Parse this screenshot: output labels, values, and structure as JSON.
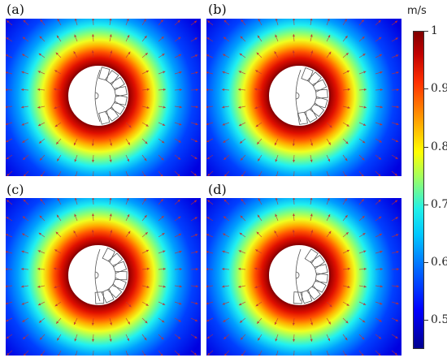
{
  "chart_data": {
    "type": "heatmap",
    "title": "",
    "panels": [
      {
        "label": "(a)",
        "magnet_blocks": 8
      },
      {
        "label": "(b)",
        "magnet_blocks": 8
      },
      {
        "label": "(c)",
        "magnet_blocks": 8
      },
      {
        "label": "(d)",
        "magnet_blocks": 8
      }
    ],
    "colorbar": {
      "unit": "m/s",
      "range": [
        0.45,
        1.0
      ],
      "ticks": [
        {
          "value": 1.0,
          "label": "1"
        },
        {
          "value": 0.9,
          "label": "0.9"
        },
        {
          "value": 0.8,
          "label": "0.8"
        },
        {
          "value": 0.7,
          "label": "0.7"
        },
        {
          "value": 0.6,
          "label": "0.6"
        },
        {
          "value": 0.5,
          "label": "0.5"
        }
      ]
    },
    "arrows": "velocity direction vectors, radial around rotor"
  }
}
